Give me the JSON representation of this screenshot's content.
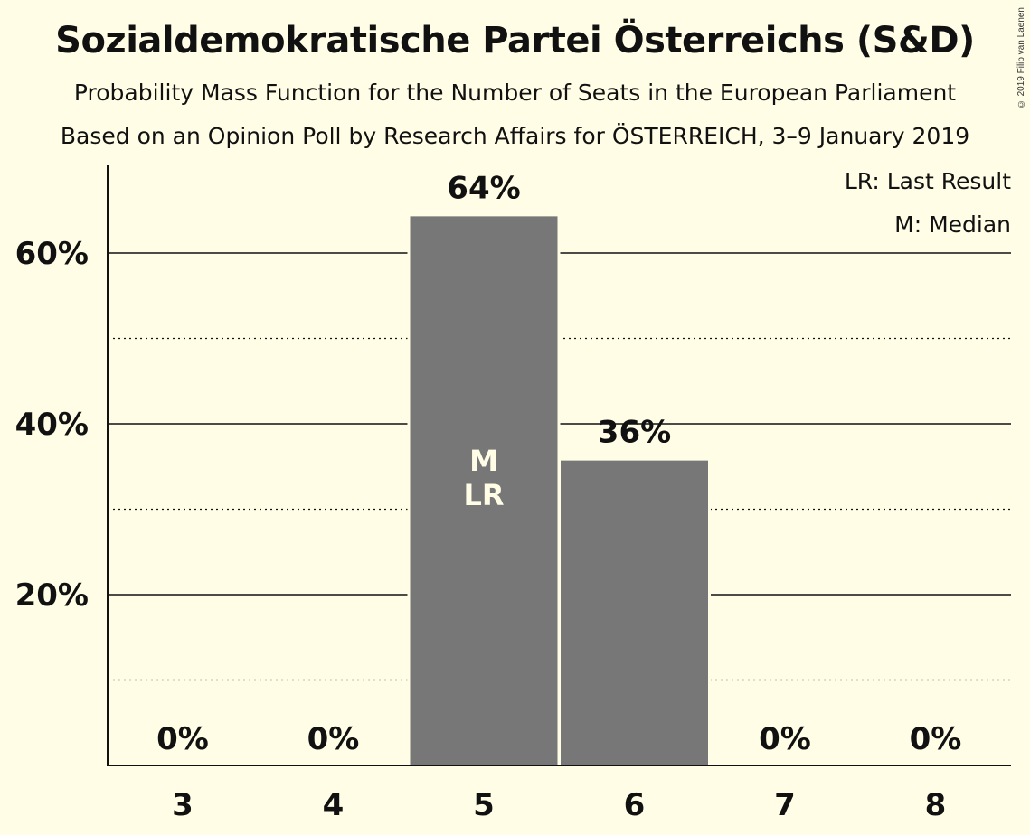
{
  "header": {
    "title": "Sozialdemokratische Partei Österreichs (S&D)",
    "subtitle": "Probability Mass Function for the Number of Seats in the European Parliament",
    "source_line": "Based on an Opinion Poll by Research Affairs for ÖSTERREICH, 3–9 January 2019",
    "copyright": "© 2019 Filip van Laenen"
  },
  "legend": {
    "last_result": "LR: Last Result",
    "median": "M: Median"
  },
  "colors": {
    "background": "#fffde6",
    "bar": "#777777",
    "text": "#111111",
    "marker_text": "#fffde6"
  },
  "chart_data": {
    "type": "bar",
    "categories": [
      "3",
      "4",
      "5",
      "6",
      "7",
      "8"
    ],
    "values": [
      0,
      0,
      64.3,
      35.7,
      0,
      0
    ],
    "data_labels": [
      "0%",
      "0%",
      "64%",
      "36%",
      "0%",
      "0%"
    ],
    "ylim": [
      0,
      70
    ],
    "y_ticks_major": [
      20,
      40,
      60
    ],
    "y_ticks_minor": [
      10,
      30,
      50
    ],
    "y_tick_labels": [
      "20%",
      "40%",
      "60%"
    ],
    "median_category": "5",
    "last_result_category": "5",
    "median_marker": "M",
    "last_result_marker": "LR",
    "grid": true,
    "legend_position": "top-right"
  }
}
